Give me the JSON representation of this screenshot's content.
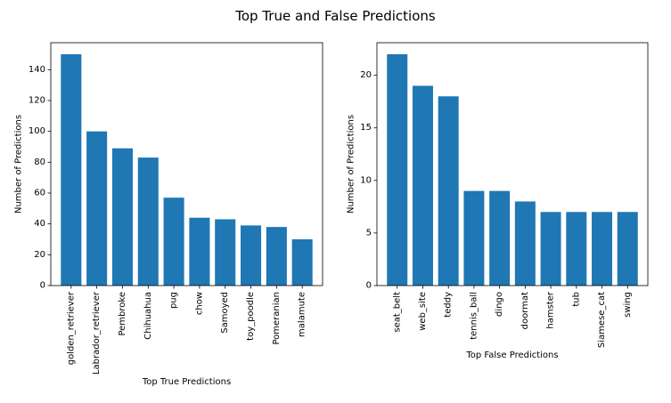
{
  "figure": {
    "title": "Top True and False Predictions"
  },
  "chart_data": [
    {
      "type": "bar",
      "categories": [
        "golden_retriever",
        "Labrador_retriever",
        "Pembroke",
        "Chihuahua",
        "pug",
        "chow",
        "Samoyed",
        "toy_poodle",
        "Pomeranian",
        "malamute"
      ],
      "values": [
        150,
        100,
        89,
        83,
        57,
        44,
        43,
        39,
        38,
        30
      ],
      "xlabel": "Top True Predictions",
      "ylabel": "Number of Predictions",
      "ylim": [
        0,
        157.5
      ],
      "yticks": [
        0,
        20,
        40,
        60,
        80,
        100,
        120,
        140
      ],
      "grid": false,
      "bar_color": "#1f77b4"
    },
    {
      "type": "bar",
      "categories": [
        "seat_belt",
        "web_site",
        "teddy",
        "tennis_ball",
        "dingo",
        "doormat",
        "hamster",
        "tub",
        "Siamese_cat",
        "swing"
      ],
      "values": [
        22,
        19,
        18,
        9,
        9,
        8,
        7,
        7,
        7,
        7
      ],
      "xlabel": "Top False Predictions",
      "ylabel": "Number of Predictions",
      "ylim": [
        0,
        23.1
      ],
      "yticks": [
        0,
        5,
        10,
        15,
        20
      ],
      "grid": false,
      "bar_color": "#1f77b4"
    }
  ]
}
